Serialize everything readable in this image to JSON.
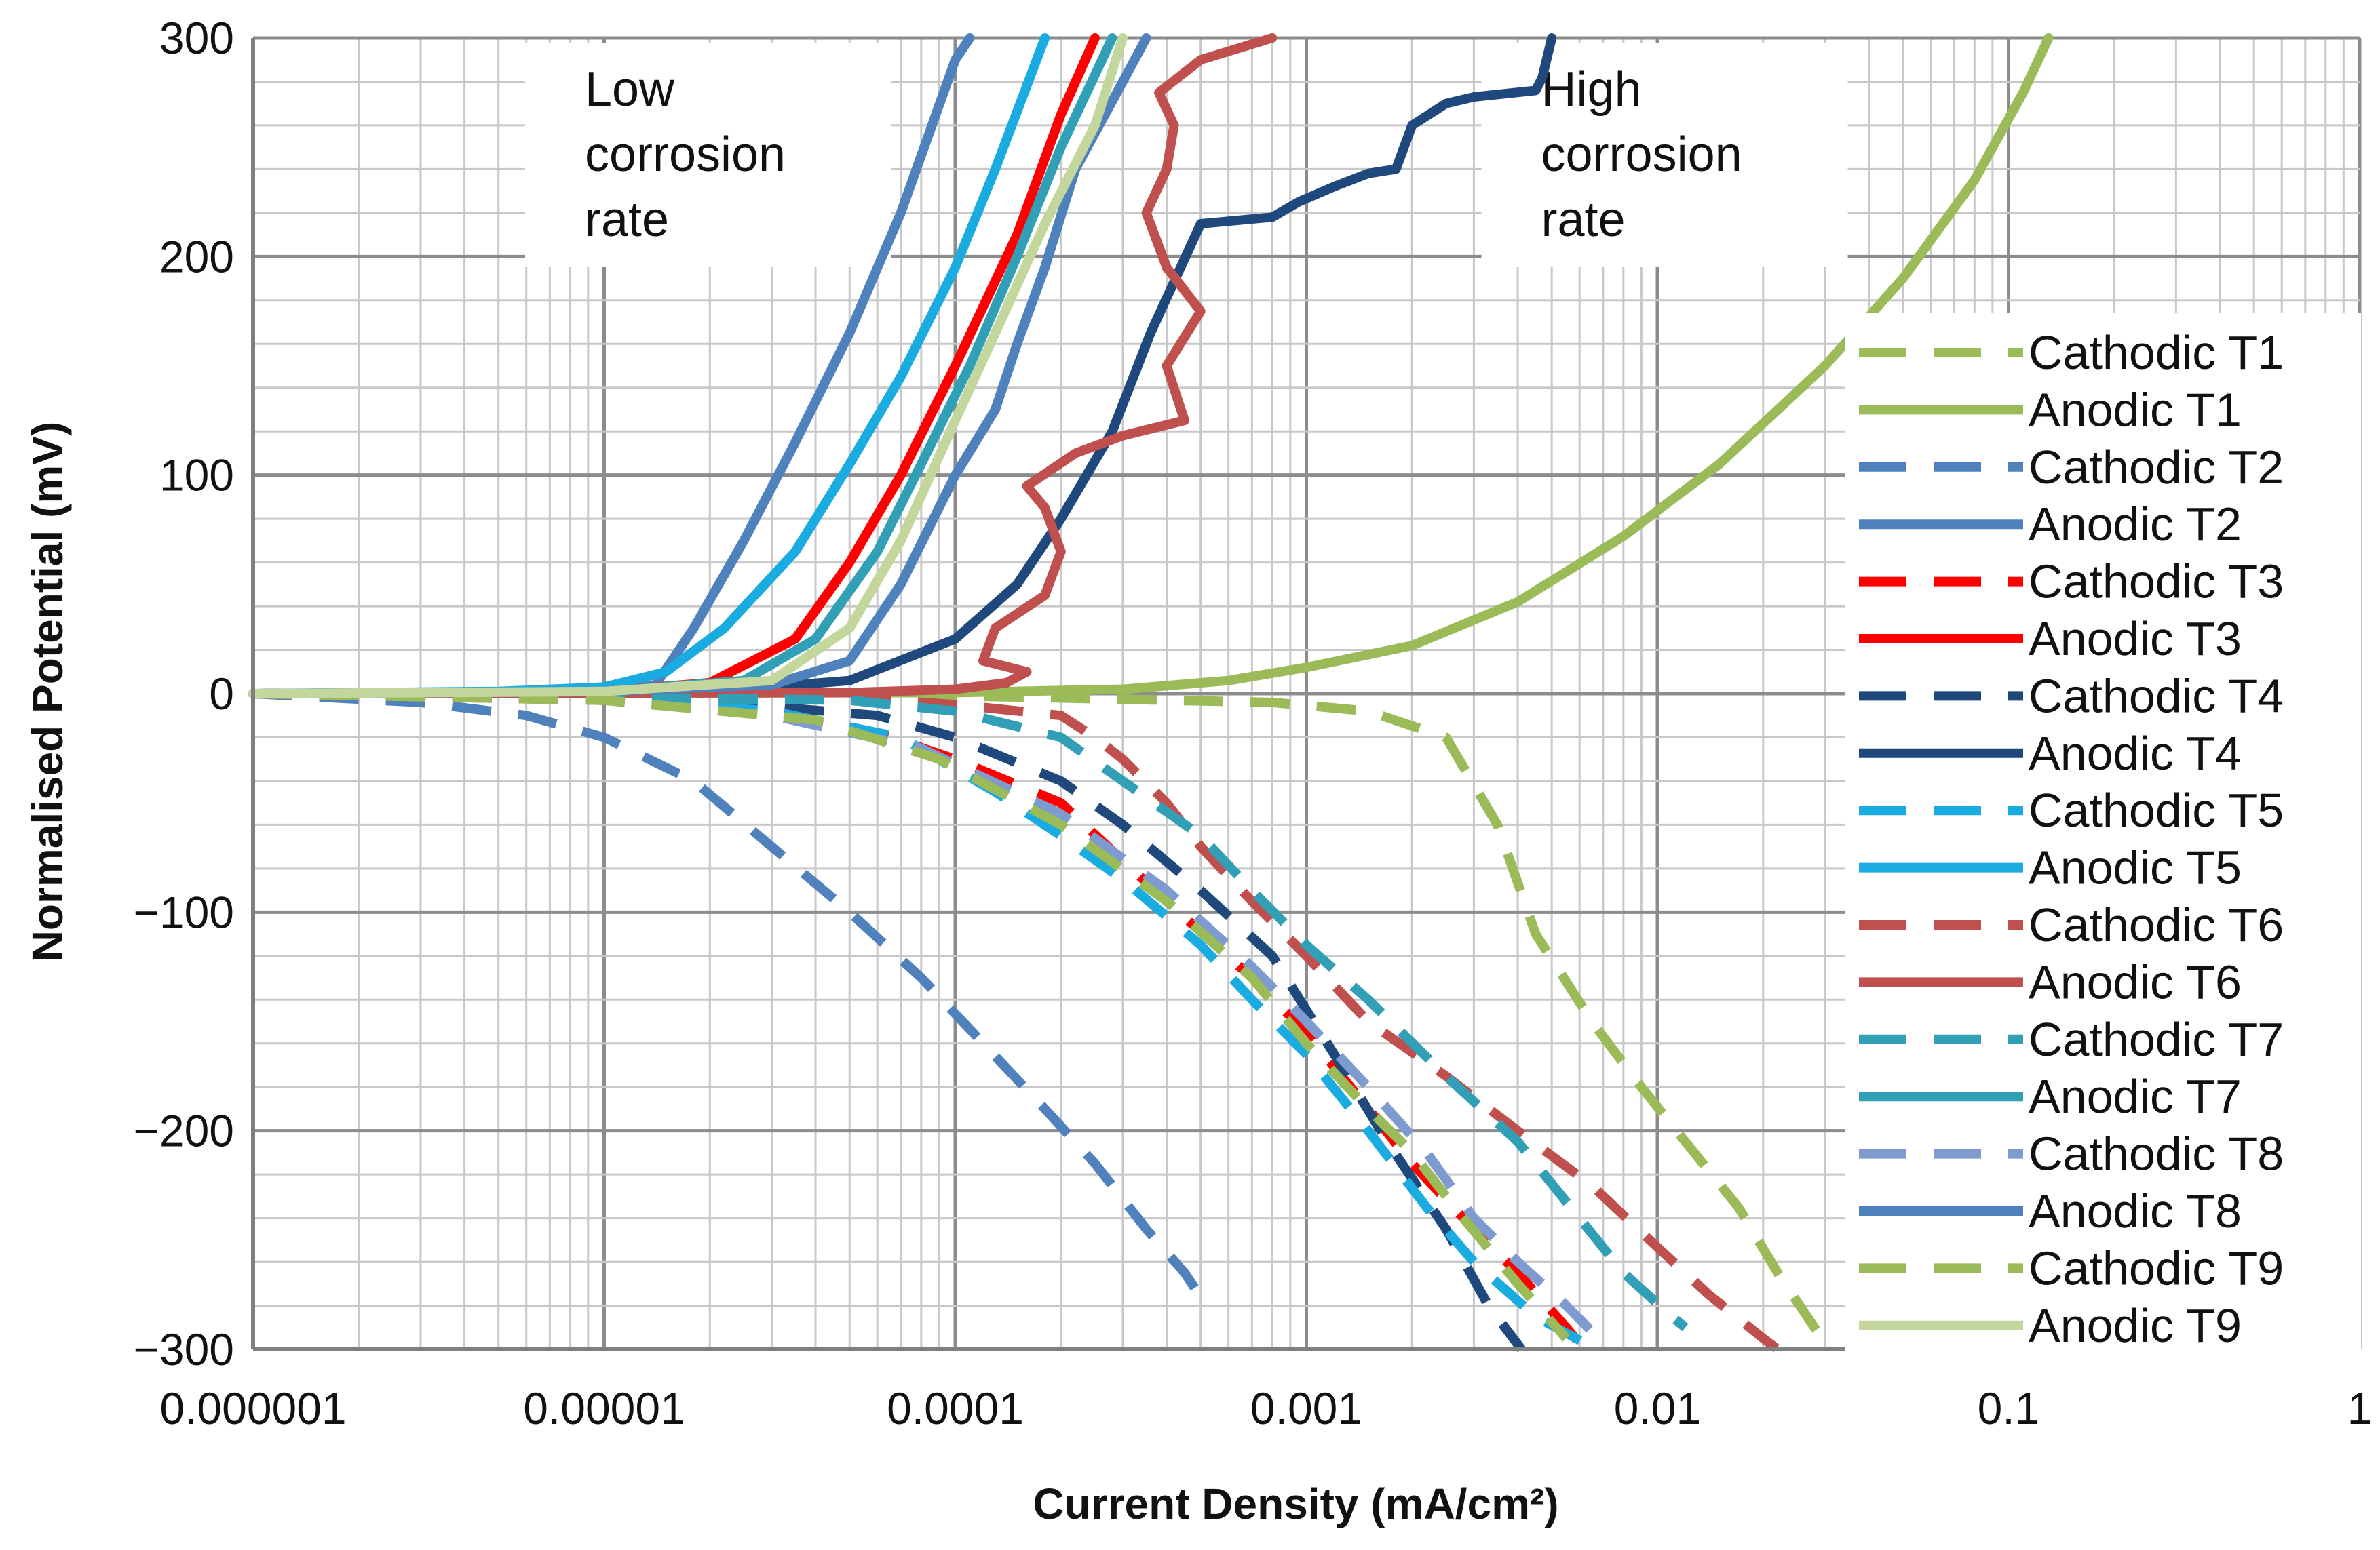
{
  "chart_data": {
    "type": "line",
    "title": "",
    "xlabel": "Current Density (mA/cm²)",
    "ylabel": "Normalised Potential (mV)",
    "x_scale": "log",
    "xlim": [
      1e-06,
      1
    ],
    "ylim": [
      -300,
      300
    ],
    "x_ticks": [
      {
        "value": 1e-06,
        "label": "0.000001"
      },
      {
        "value": 1e-05,
        "label": "0.00001"
      },
      {
        "value": 0.0001,
        "label": "0.0001"
      },
      {
        "value": 0.001,
        "label": "0.001"
      },
      {
        "value": 0.01,
        "label": "0.01"
      },
      {
        "value": 0.1,
        "label": "0.1"
      },
      {
        "value": 1,
        "label": "1"
      }
    ],
    "y_ticks": [
      {
        "value": 300,
        "label": "300"
      },
      {
        "value": 200,
        "label": "200"
      },
      {
        "value": 100,
        "label": "100"
      },
      {
        "value": 0,
        "label": "0"
      },
      {
        "value": -100,
        "label": "−100"
      },
      {
        "value": -200,
        "label": "−200"
      },
      {
        "value": -300,
        "label": "−300"
      }
    ],
    "grid": true,
    "legend_position": "right",
    "annotations": [
      {
        "lines": [
          "Low",
          "corrosion",
          "rate"
        ],
        "x": 8.5e-06,
        "y": 300
      },
      {
        "lines": [
          "High",
          "corrosion",
          "rate"
        ],
        "x": 0.0045,
        "y": 300
      }
    ],
    "series": [
      {
        "name": "Cathodic T1",
        "style": "dashed",
        "color": "#9bbb59",
        "points": [
          [
            1e-06,
            0
          ],
          [
            0.0001,
            -1
          ],
          [
            0.0008,
            -4
          ],
          [
            0.0015,
            -8
          ],
          [
            0.0025,
            -20
          ],
          [
            0.0035,
            -60
          ],
          [
            0.0045,
            -110
          ],
          [
            0.0065,
            -150
          ],
          [
            0.009,
            -180
          ],
          [
            0.012,
            -205
          ],
          [
            0.017,
            -235
          ],
          [
            0.022,
            -265
          ],
          [
            0.028,
            -290
          ],
          [
            0.031,
            -300
          ]
        ]
      },
      {
        "name": "Anodic T1",
        "style": "solid",
        "color": "#9bbb59",
        "points": [
          [
            1e-06,
            0
          ],
          [
            0.0001,
            0.5
          ],
          [
            0.0003,
            2
          ],
          [
            0.0006,
            6
          ],
          [
            0.001,
            12
          ],
          [
            0.002,
            22
          ],
          [
            0.004,
            42
          ],
          [
            0.008,
            72
          ],
          [
            0.015,
            105
          ],
          [
            0.03,
            150
          ],
          [
            0.05,
            190
          ],
          [
            0.08,
            235
          ],
          [
            0.11,
            275
          ],
          [
            0.13,
            300
          ]
        ]
      },
      {
        "name": "Cathodic T2",
        "style": "dashed",
        "color": "#4f81bd",
        "points": [
          [
            1e-06,
            0
          ],
          [
            3e-06,
            -4
          ],
          [
            6e-06,
            -10
          ],
          [
            1e-05,
            -20
          ],
          [
            1.8e-05,
            -40
          ],
          [
            3e-05,
            -70
          ],
          [
            5e-05,
            -100
          ],
          [
            8e-05,
            -130
          ],
          [
            0.00012,
            -160
          ],
          [
            0.00018,
            -190
          ],
          [
            0.00025,
            -215
          ],
          [
            0.00035,
            -245
          ],
          [
            0.00045,
            -265
          ],
          [
            0.00052,
            -280
          ]
        ]
      },
      {
        "name": "Anodic T2",
        "style": "solid",
        "color": "#4f81bd",
        "points": [
          [
            1e-06,
            0
          ],
          [
            1e-05,
            1
          ],
          [
            1.4e-05,
            4
          ],
          [
            1.8e-05,
            30
          ],
          [
            2.5e-05,
            70
          ],
          [
            3.5e-05,
            115
          ],
          [
            5e-05,
            165
          ],
          [
            7e-05,
            220
          ],
          [
            0.0001,
            290
          ],
          [
            0.00011,
            300
          ]
        ]
      },
      {
        "name": "Cathodic T3",
        "style": "dashed",
        "color": "#ff0000",
        "points": [
          [
            1e-06,
            0
          ],
          [
            1e-05,
            -3
          ],
          [
            3e-05,
            -10
          ],
          [
            6e-05,
            -18
          ],
          [
            0.0001,
            -30
          ],
          [
            0.0002,
            -50
          ],
          [
            0.0004,
            -95
          ],
          [
            0.0007,
            -130
          ],
          [
            0.001,
            -155
          ],
          [
            0.0015,
            -190
          ],
          [
            0.002,
            -215
          ],
          [
            0.003,
            -245
          ],
          [
            0.004,
            -265
          ],
          [
            0.0055,
            -290
          ],
          [
            0.0062,
            -300
          ]
        ]
      },
      {
        "name": "Anodic T3",
        "style": "solid",
        "color": "#ff0000",
        "points": [
          [
            1e-06,
            0
          ],
          [
            1e-05,
            1
          ],
          [
            2e-05,
            5
          ],
          [
            3.5e-05,
            25
          ],
          [
            5e-05,
            60
          ],
          [
            7e-05,
            100
          ],
          [
            0.0001,
            150
          ],
          [
            0.00015,
            210
          ],
          [
            0.0002,
            265
          ],
          [
            0.00025,
            300
          ]
        ]
      },
      {
        "name": "Cathodic T4",
        "style": "dashed",
        "color": "#1f497d",
        "points": [
          [
            1e-06,
            0
          ],
          [
            1e-05,
            -2
          ],
          [
            3e-05,
            -6
          ],
          [
            6e-05,
            -10
          ],
          [
            0.0001,
            -20
          ],
          [
            0.0002,
            -40
          ],
          [
            0.0003,
            -60
          ],
          [
            0.0005,
            -90
          ],
          [
            0.0008,
            -120
          ],
          [
            0.0012,
            -165
          ],
          [
            0.0017,
            -205
          ],
          [
            0.0025,
            -245
          ],
          [
            0.0033,
            -280
          ],
          [
            0.0041,
            -300
          ]
        ]
      },
      {
        "name": "Anodic T4",
        "style": "solid",
        "color": "#1f497d",
        "points": [
          [
            1e-06,
            0
          ],
          [
            2e-05,
            1
          ],
          [
            5e-05,
            6
          ],
          [
            0.0001,
            25
          ],
          [
            0.00015,
            50
          ],
          [
            0.0002,
            80
          ],
          [
            0.00028,
            120
          ],
          [
            0.00036,
            165
          ],
          [
            0.0005,
            215
          ],
          [
            0.0008,
            218
          ],
          [
            0.00095,
            225
          ],
          [
            0.0012,
            232
          ],
          [
            0.0015,
            238
          ],
          [
            0.0018,
            240
          ],
          [
            0.002,
            260
          ],
          [
            0.0025,
            270
          ],
          [
            0.003,
            273
          ],
          [
            0.0045,
            276
          ],
          [
            0.0047,
            282
          ],
          [
            0.005,
            300
          ]
        ]
      },
      {
        "name": "Cathodic T5",
        "style": "dashed",
        "color": "#1aabe0",
        "points": [
          [
            1e-06,
            0
          ],
          [
            1e-05,
            -2
          ],
          [
            3e-05,
            -8
          ],
          [
            7e-05,
            -20
          ],
          [
            0.00013,
            -45
          ],
          [
            0.0002,
            -65
          ],
          [
            0.0003,
            -85
          ],
          [
            0.0005,
            -115
          ],
          [
            0.0007,
            -140
          ],
          [
            0.001,
            -165
          ],
          [
            0.0015,
            -200
          ],
          [
            0.0022,
            -235
          ],
          [
            0.003,
            -260
          ],
          [
            0.0045,
            -285
          ],
          [
            0.0067,
            -300
          ]
        ]
      },
      {
        "name": "Anodic T5",
        "style": "solid",
        "color": "#1aabe0",
        "points": [
          [
            1e-06,
            0
          ],
          [
            5e-06,
            1
          ],
          [
            1e-05,
            3
          ],
          [
            1.5e-05,
            10
          ],
          [
            2.2e-05,
            30
          ],
          [
            3.5e-05,
            65
          ],
          [
            5e-05,
            105
          ],
          [
            7e-05,
            145
          ],
          [
            0.0001,
            195
          ],
          [
            0.00013,
            240
          ],
          [
            0.00018,
            300
          ]
        ]
      },
      {
        "name": "Cathodic T6",
        "style": "dashed",
        "color": "#c0504d",
        "points": [
          [
            1e-06,
            0
          ],
          [
            5e-05,
            -2
          ],
          [
            0.0001,
            -5
          ],
          [
            0.0002,
            -10
          ],
          [
            0.00025,
            -20
          ],
          [
            0.0003,
            -30
          ],
          [
            0.0004,
            -50
          ],
          [
            0.0005,
            -70
          ],
          [
            0.0007,
            -95
          ],
          [
            0.001,
            -120
          ],
          [
            0.0015,
            -150
          ],
          [
            0.0025,
            -175
          ],
          [
            0.004,
            -200
          ],
          [
            0.0065,
            -225
          ],
          [
            0.0095,
            -250
          ],
          [
            0.014,
            -275
          ],
          [
            0.02,
            -295
          ],
          [
            0.022,
            -300
          ]
        ]
      },
      {
        "name": "Anodic T6",
        "style": "solid",
        "color": "#c0504d",
        "points": [
          [
            1e-06,
            0
          ],
          [
            5e-05,
            0.5
          ],
          [
            0.0001,
            2
          ],
          [
            0.00014,
            5
          ],
          [
            0.00016,
            10
          ],
          [
            0.00012,
            15
          ],
          [
            0.00013,
            30
          ],
          [
            0.00018,
            45
          ],
          [
            0.0002,
            65
          ],
          [
            0.00018,
            85
          ],
          [
            0.00016,
            95
          ],
          [
            0.00022,
            110
          ],
          [
            0.0003,
            118
          ],
          [
            0.00045,
            125
          ],
          [
            0.0004,
            150
          ],
          [
            0.0005,
            175
          ],
          [
            0.0004,
            195
          ],
          [
            0.00035,
            220
          ],
          [
            0.0004,
            240
          ],
          [
            0.00042,
            260
          ],
          [
            0.00038,
            275
          ],
          [
            0.0005,
            290
          ],
          [
            0.0008,
            300
          ]
        ]
      },
      {
        "name": "Cathodic T7",
        "style": "dashed",
        "color": "#31a0b7",
        "points": [
          [
            1e-06,
            0
          ],
          [
            5e-05,
            -3
          ],
          [
            0.0001,
            -8
          ],
          [
            0.0002,
            -20
          ],
          [
            0.0003,
            -40
          ],
          [
            0.0005,
            -65
          ],
          [
            0.0007,
            -90
          ],
          [
            0.001,
            -115
          ],
          [
            0.0015,
            -140
          ],
          [
            0.0025,
            -175
          ],
          [
            0.004,
            -205
          ],
          [
            0.006,
            -240
          ],
          [
            0.008,
            -265
          ],
          [
            0.011,
            -285
          ],
          [
            0.012,
            -290
          ]
        ]
      },
      {
        "name": "Anodic T7",
        "style": "solid",
        "color": "#31a0b7",
        "points": [
          [
            1e-06,
            0
          ],
          [
            1e-05,
            1
          ],
          [
            2.5e-05,
            6
          ],
          [
            4e-05,
            25
          ],
          [
            6e-05,
            65
          ],
          [
            8e-05,
            105
          ],
          [
            0.00011,
            150
          ],
          [
            0.00015,
            200
          ],
          [
            0.0002,
            250
          ],
          [
            0.00028,
            300
          ]
        ]
      },
      {
        "name": "Cathodic T8",
        "style": "dashed",
        "color": "#7e9bd0",
        "points": [
          [
            1e-06,
            0
          ],
          [
            1e-05,
            -3
          ],
          [
            3e-05,
            -10
          ],
          [
            8e-05,
            -25
          ],
          [
            0.0002,
            -55
          ],
          [
            0.0004,
            -90
          ],
          [
            0.0007,
            -125
          ],
          [
            0.001,
            -150
          ],
          [
            0.0015,
            -180
          ],
          [
            0.0022,
            -210
          ],
          [
            0.003,
            -240
          ],
          [
            0.004,
            -260
          ],
          [
            0.0055,
            -280
          ],
          [
            0.0068,
            -295
          ]
        ]
      },
      {
        "name": "Anodic T8",
        "style": "solid",
        "color": "#4f81bd",
        "points": [
          [
            1e-06,
            0
          ],
          [
            1e-05,
            1
          ],
          [
            3e-05,
            4
          ],
          [
            5e-05,
            15
          ],
          [
            7e-05,
            50
          ],
          [
            0.0001,
            100
          ],
          [
            0.00013,
            130
          ],
          [
            0.00015,
            160
          ],
          [
            0.00018,
            195
          ],
          [
            0.00022,
            240
          ],
          [
            0.0003,
            280
          ],
          [
            0.00035,
            300
          ]
        ]
      },
      {
        "name": "Cathodic T9",
        "style": "dashed",
        "color": "#9bbb59",
        "points": [
          [
            1e-06,
            0
          ],
          [
            1e-05,
            -3
          ],
          [
            4e-05,
            -12
          ],
          [
            9e-05,
            -30
          ],
          [
            0.0002,
            -60
          ],
          [
            0.0004,
            -95
          ],
          [
            0.0007,
            -130
          ],
          [
            0.001,
            -160
          ],
          [
            0.0015,
            -190
          ],
          [
            0.002,
            -210
          ],
          [
            0.0028,
            -240
          ],
          [
            0.004,
            -270
          ],
          [
            0.0055,
            -295
          ]
        ]
      },
      {
        "name": "Anodic T9",
        "style": "solid",
        "color": "#c3d69b",
        "points": [
          [
            1e-06,
            0
          ],
          [
            1e-05,
            1
          ],
          [
            3e-05,
            6
          ],
          [
            5e-05,
            30
          ],
          [
            7e-05,
            70
          ],
          [
            0.0001,
            125
          ],
          [
            0.00013,
            165
          ],
          [
            0.00018,
            215
          ],
          [
            0.00025,
            260
          ],
          [
            0.0003,
            300
          ]
        ]
      }
    ]
  }
}
